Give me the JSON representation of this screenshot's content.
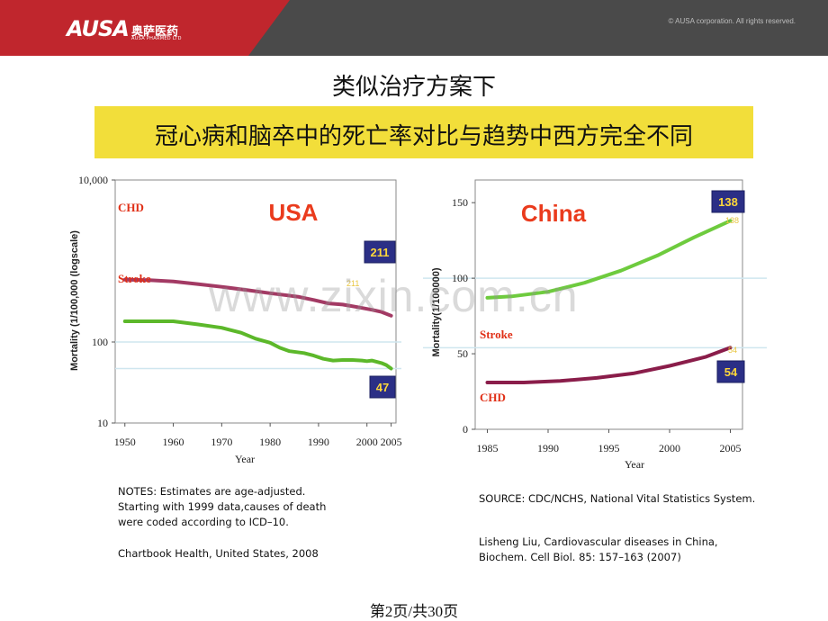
{
  "header": {
    "logo_mark": "AUSA",
    "logo_cn": "奥萨医药",
    "logo_en": "AUSA PHARMED LTD",
    "copyright": "©  AUSA corporation.  All rights reserved.",
    "bg_color": "#4a4a4a",
    "brand_color": "#c0262d"
  },
  "slide": {
    "title": "类似治疗方案下",
    "banner": "冠心病和脑卒中的死亡率对比与趋势中西方完全不同",
    "banner_color": "#f2de3a",
    "watermark": "www.zixin.com.cn",
    "page_indicator": "第2页/共30页"
  },
  "notes": {
    "left": "NOTES: Estimates are age-adjusted.\nStarting with 1999 data,causes of death\nwere coded according to ICD–10.",
    "left_source": "Chartbook Health, United States, 2008",
    "right_source": "SOURCE: CDC/NCHS, National Vital Statistics System.",
    "right_ref": "Lisheng Liu, Cardiovascular diseases in China,\nBiochem. Cell Biol. 85: 157–163 (2007)"
  },
  "chart_data": [
    {
      "type": "line",
      "title": "USA",
      "xlabel": "Year",
      "ylabel": "Mortality (1/100,000 (logscale)",
      "yscale": "log",
      "xlim": [
        1948,
        2006
      ],
      "ylim": [
        10,
        10000
      ],
      "x_ticks": [
        "1950",
        "1960",
        "1970",
        "1980",
        "1990",
        "2000",
        "2005"
      ],
      "y_ticks": [
        "10",
        "100",
        "10,000"
      ],
      "series": [
        {
          "name": "CHD",
          "color": "#a33a64",
          "end_label": "211",
          "end_label_faint": "211",
          "points": [
            [
              1950,
              588
            ],
            [
              1955,
              580
            ],
            [
              1960,
              560
            ],
            [
              1965,
              520
            ],
            [
              1970,
              480
            ],
            [
              1975,
              440
            ],
            [
              1980,
              400
            ],
            [
              1983,
              380
            ],
            [
              1986,
              360
            ],
            [
              1989,
              330
            ],
            [
              1992,
              300
            ],
            [
              1995,
              290
            ],
            [
              1998,
              270
            ],
            [
              2001,
              250
            ],
            [
              2003,
              235
            ],
            [
              2005,
              211
            ]
          ]
        },
        {
          "name": "Stroke",
          "color": "#5cb82a",
          "end_label": "47",
          "points": [
            [
              1950,
              180
            ],
            [
              1955,
              180
            ],
            [
              1960,
              180
            ],
            [
              1965,
              165
            ],
            [
              1970,
              150
            ],
            [
              1974,
              130
            ],
            [
              1977,
              110
            ],
            [
              1980,
              98
            ],
            [
              1982,
              85
            ],
            [
              1984,
              77
            ],
            [
              1987,
              73
            ],
            [
              1989,
              68
            ],
            [
              1991,
              62
            ],
            [
              1993,
              59
            ],
            [
              1995,
              60
            ],
            [
              1997,
              60
            ],
            [
              1999,
              59
            ],
            [
              2000,
              58
            ],
            [
              2001,
              59
            ],
            [
              2003,
              55
            ],
            [
              2004,
              52
            ],
            [
              2005,
              47
            ]
          ]
        }
      ]
    },
    {
      "type": "line",
      "title": "China",
      "xlabel": "Year",
      "ylabel": "Mortality(1/100000)",
      "xlim": [
        1984,
        2006
      ],
      "ylim": [
        0,
        165
      ],
      "x_ticks": [
        "1985",
        "1990",
        "1995",
        "2000",
        "2005"
      ],
      "y_ticks": [
        "0",
        "50",
        "100",
        "150"
      ],
      "series": [
        {
          "name": "Stroke",
          "color": "#6ecb3e",
          "end_label": "138",
          "end_label_faint": "138",
          "points": [
            [
              1985,
              87
            ],
            [
              1987,
              88
            ],
            [
              1990,
              91
            ],
            [
              1993,
              97
            ],
            [
              1996,
              105
            ],
            [
              1999,
              115
            ],
            [
              2002,
              127
            ],
            [
              2005,
              138
            ]
          ]
        },
        {
          "name": "CHD",
          "color": "#8a1d4a",
          "end_label": "54",
          "end_label_faint": "54",
          "points": [
            [
              1985,
              31
            ],
            [
              1988,
              31
            ],
            [
              1991,
              32
            ],
            [
              1994,
              34
            ],
            [
              1997,
              37
            ],
            [
              2000,
              42
            ],
            [
              2003,
              48
            ],
            [
              2005,
              54
            ]
          ]
        }
      ]
    }
  ]
}
